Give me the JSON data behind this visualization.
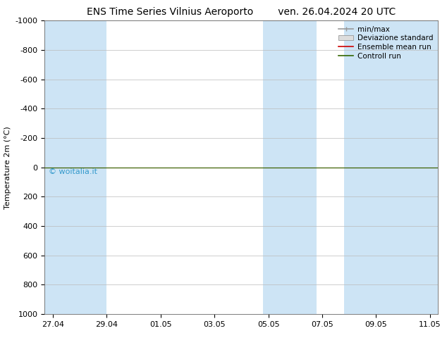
{
  "title_left": "ENS Time Series Vilnius Aeroporto",
  "title_right": "ven. 26.04.2024 20 UTC",
  "ylabel": "Temperature 2m (°C)",
  "yticks": [
    -1000,
    -800,
    -600,
    -400,
    -200,
    0,
    200,
    400,
    600,
    800,
    1000
  ],
  "ylim_bottom": 1000,
  "ylim_top": -1000,
  "xtick_labels": [
    "27.04",
    "29.04",
    "01.05",
    "03.05",
    "05.05",
    "07.05",
    "09.05",
    "11.05"
  ],
  "x_values": [
    0,
    2,
    4,
    6,
    8,
    10,
    12,
    14
  ],
  "x_lim_left": -0.3,
  "x_lim_right": 14.3,
  "bg_color": "#ffffff",
  "plot_bg_color": "#ffffff",
  "grid_color": "#bbbbbb",
  "shaded_band_color": "#cde4f5",
  "shaded_ranges": [
    [
      -0.3,
      2.0
    ],
    [
      7.8,
      9.8
    ],
    [
      10.8,
      14.3
    ]
  ],
  "line_y": 0,
  "green_line_color": "#336600",
  "red_line_color": "#cc0000",
  "watermark_text": "© woitalia.it",
  "watermark_color": "#3399cc",
  "legend_items": [
    {
      "label": "min/max",
      "color": "#999999",
      "type": "errorbar"
    },
    {
      "label": "Deviazione standard",
      "color": "#cccccc",
      "type": "box"
    },
    {
      "label": "Ensemble mean run",
      "color": "#cc0000",
      "type": "line"
    },
    {
      "label": "Controll run",
      "color": "#336600",
      "type": "line"
    }
  ],
  "title_fontsize": 10,
  "tick_fontsize": 8,
  "ylabel_fontsize": 8,
  "legend_fontsize": 7.5
}
